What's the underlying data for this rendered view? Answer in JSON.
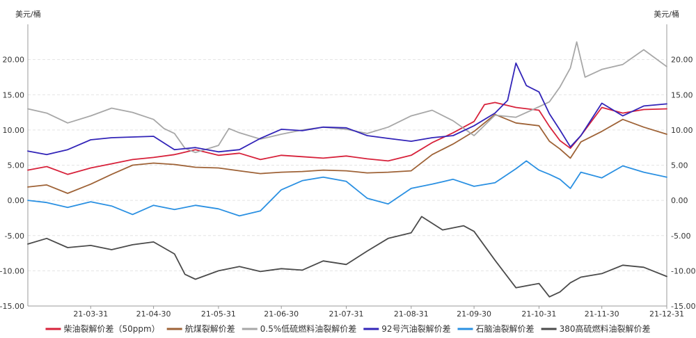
{
  "chart_data": {
    "type": "line",
    "y_unit_left": "美元/桶",
    "y_unit_right": "美元/桶",
    "ylim": [
      -15,
      25
    ],
    "yticks": [
      "-15.00",
      "-10.00",
      "-5.00",
      "0.00",
      "5.00",
      "10.00",
      "15.00",
      "20.00"
    ],
    "yticks_right": [
      "-15.00",
      "-10.00",
      "-5.00",
      "0.00",
      "5.00",
      "10.00",
      "15.00",
      "20.00"
    ],
    "xlim": [
      "2021-03-01",
      "2021-12-31"
    ],
    "xticks": [
      "21-03-31",
      "21-04-30",
      "21-05-31",
      "21-06-30",
      "21-07-31",
      "21-08-31",
      "21-09-30",
      "21-10-31",
      "21-11-30",
      "21-12-31"
    ],
    "grid": true,
    "legend_position": "bottom",
    "series": [
      {
        "name": "柴油裂解价差（50ppm）",
        "color": "#d7213a",
        "points": [
          [
            "2021-03-01",
            4.3
          ],
          [
            "2021-03-10",
            4.8
          ],
          [
            "2021-03-20",
            3.7
          ],
          [
            "2021-03-31",
            4.6
          ],
          [
            "2021-04-10",
            5.2
          ],
          [
            "2021-04-20",
            5.8
          ],
          [
            "2021-04-30",
            6.1
          ],
          [
            "2021-05-10",
            6.5
          ],
          [
            "2021-05-20",
            7.2
          ],
          [
            "2021-05-31",
            6.4
          ],
          [
            "2021-06-10",
            6.7
          ],
          [
            "2021-06-20",
            5.8
          ],
          [
            "2021-06-30",
            6.4
          ],
          [
            "2021-07-10",
            6.2
          ],
          [
            "2021-07-20",
            6.0
          ],
          [
            "2021-07-31",
            6.3
          ],
          [
            "2021-08-10",
            5.9
          ],
          [
            "2021-08-20",
            5.6
          ],
          [
            "2021-08-31",
            6.4
          ],
          [
            "2021-09-10",
            8.2
          ],
          [
            "2021-09-20",
            9.6
          ],
          [
            "2021-09-30",
            11.2
          ],
          [
            "2021-10-05",
            13.6
          ],
          [
            "2021-10-10",
            13.9
          ],
          [
            "2021-10-20",
            13.2
          ],
          [
            "2021-10-31",
            12.8
          ],
          [
            "2021-11-05",
            10.5
          ],
          [
            "2021-11-10",
            8.5
          ],
          [
            "2021-11-15",
            7.4
          ],
          [
            "2021-11-20",
            9.2
          ],
          [
            "2021-11-30",
            13.2
          ],
          [
            "2021-12-10",
            12.4
          ],
          [
            "2021-12-20",
            12.9
          ],
          [
            "2021-12-31",
            13.0
          ]
        ]
      },
      {
        "name": "航煤裂解价差",
        "color": "#9e6236",
        "points": [
          [
            "2021-03-01",
            1.9
          ],
          [
            "2021-03-10",
            2.2
          ],
          [
            "2021-03-20",
            1.0
          ],
          [
            "2021-03-31",
            2.3
          ],
          [
            "2021-04-10",
            3.7
          ],
          [
            "2021-04-20",
            5.0
          ],
          [
            "2021-04-30",
            5.3
          ],
          [
            "2021-05-10",
            5.1
          ],
          [
            "2021-05-20",
            4.7
          ],
          [
            "2021-05-31",
            4.6
          ],
          [
            "2021-06-10",
            4.2
          ],
          [
            "2021-06-20",
            3.8
          ],
          [
            "2021-06-30",
            4.0
          ],
          [
            "2021-07-10",
            4.1
          ],
          [
            "2021-07-20",
            4.3
          ],
          [
            "2021-07-31",
            4.2
          ],
          [
            "2021-08-10",
            3.9
          ],
          [
            "2021-08-20",
            4.0
          ],
          [
            "2021-08-31",
            4.2
          ],
          [
            "2021-09-10",
            6.5
          ],
          [
            "2021-09-20",
            8.0
          ],
          [
            "2021-09-30",
            9.8
          ],
          [
            "2021-10-10",
            12.2
          ],
          [
            "2021-10-20",
            11.0
          ],
          [
            "2021-10-31",
            10.6
          ],
          [
            "2021-11-05",
            8.4
          ],
          [
            "2021-11-10",
            7.3
          ],
          [
            "2021-11-15",
            6.0
          ],
          [
            "2021-11-20",
            8.3
          ],
          [
            "2021-11-30",
            9.8
          ],
          [
            "2021-12-10",
            11.5
          ],
          [
            "2021-12-20",
            10.4
          ],
          [
            "2021-12-31",
            9.4
          ]
        ]
      },
      {
        "name": "0.5%低硫燃料油裂解价差",
        "color": "#a7a7a7",
        "points": [
          [
            "2021-03-01",
            13.0
          ],
          [
            "2021-03-10",
            12.4
          ],
          [
            "2021-03-20",
            11.0
          ],
          [
            "2021-03-31",
            12.0
          ],
          [
            "2021-04-10",
            13.1
          ],
          [
            "2021-04-20",
            12.5
          ],
          [
            "2021-04-30",
            11.5
          ],
          [
            "2021-05-05",
            10.2
          ],
          [
            "2021-05-10",
            9.5
          ],
          [
            "2021-05-15",
            7.4
          ],
          [
            "2021-05-20",
            6.8
          ],
          [
            "2021-05-31",
            7.8
          ],
          [
            "2021-06-05",
            10.2
          ],
          [
            "2021-06-10",
            9.6
          ],
          [
            "2021-06-20",
            8.7
          ],
          [
            "2021-06-30",
            9.4
          ],
          [
            "2021-07-10",
            10.0
          ],
          [
            "2021-07-20",
            10.4
          ],
          [
            "2021-07-31",
            10.1
          ],
          [
            "2021-08-10",
            9.5
          ],
          [
            "2021-08-20",
            10.4
          ],
          [
            "2021-08-31",
            12.0
          ],
          [
            "2021-09-10",
            12.8
          ],
          [
            "2021-09-20",
            11.3
          ],
          [
            "2021-09-30",
            9.2
          ],
          [
            "2021-10-10",
            12.1
          ],
          [
            "2021-10-20",
            11.8
          ],
          [
            "2021-10-31",
            13.3
          ],
          [
            "2021-11-05",
            14.0
          ],
          [
            "2021-11-10",
            16.1
          ],
          [
            "2021-11-15",
            18.8
          ],
          [
            "2021-11-18",
            22.5
          ],
          [
            "2021-11-22",
            17.5
          ],
          [
            "2021-11-30",
            18.6
          ],
          [
            "2021-12-10",
            19.3
          ],
          [
            "2021-12-20",
            21.4
          ],
          [
            "2021-12-31",
            19.0
          ]
        ]
      },
      {
        "name": "92号汽油裂解价差",
        "color": "#3224b8",
        "points": [
          [
            "2021-03-01",
            7.0
          ],
          [
            "2021-03-10",
            6.5
          ],
          [
            "2021-03-20",
            7.2
          ],
          [
            "2021-03-31",
            8.6
          ],
          [
            "2021-04-10",
            8.9
          ],
          [
            "2021-04-20",
            9.0
          ],
          [
            "2021-04-30",
            9.1
          ],
          [
            "2021-05-10",
            7.2
          ],
          [
            "2021-05-20",
            7.5
          ],
          [
            "2021-05-31",
            6.9
          ],
          [
            "2021-06-10",
            7.2
          ],
          [
            "2021-06-20",
            8.8
          ],
          [
            "2021-06-30",
            10.1
          ],
          [
            "2021-07-10",
            9.9
          ],
          [
            "2021-07-20",
            10.4
          ],
          [
            "2021-07-31",
            10.3
          ],
          [
            "2021-08-10",
            9.2
          ],
          [
            "2021-08-20",
            8.8
          ],
          [
            "2021-08-31",
            8.4
          ],
          [
            "2021-09-10",
            8.9
          ],
          [
            "2021-09-20",
            9.2
          ],
          [
            "2021-09-30",
            10.6
          ],
          [
            "2021-10-10",
            12.4
          ],
          [
            "2021-10-16",
            14.2
          ],
          [
            "2021-10-20",
            19.5
          ],
          [
            "2021-10-25",
            16.3
          ],
          [
            "2021-10-31",
            15.4
          ],
          [
            "2021-11-05",
            12.3
          ],
          [
            "2021-11-10",
            10.0
          ],
          [
            "2021-11-15",
            7.6
          ],
          [
            "2021-11-20",
            9.2
          ],
          [
            "2021-11-30",
            13.8
          ],
          [
            "2021-12-10",
            12.0
          ],
          [
            "2021-12-20",
            13.4
          ],
          [
            "2021-12-31",
            13.7
          ]
        ]
      },
      {
        "name": "石脑油裂解价差",
        "color": "#2a90e2",
        "points": [
          [
            "2021-03-01",
            0.0
          ],
          [
            "2021-03-10",
            -0.3
          ],
          [
            "2021-03-20",
            -1.0
          ],
          [
            "2021-03-31",
            -0.2
          ],
          [
            "2021-04-10",
            -0.8
          ],
          [
            "2021-04-20",
            -2.0
          ],
          [
            "2021-04-30",
            -0.7
          ],
          [
            "2021-05-10",
            -1.3
          ],
          [
            "2021-05-20",
            -0.7
          ],
          [
            "2021-05-31",
            -1.2
          ],
          [
            "2021-06-10",
            -2.2
          ],
          [
            "2021-06-20",
            -1.5
          ],
          [
            "2021-06-30",
            1.5
          ],
          [
            "2021-07-10",
            2.8
          ],
          [
            "2021-07-20",
            3.3
          ],
          [
            "2021-07-31",
            2.7
          ],
          [
            "2021-08-10",
            0.3
          ],
          [
            "2021-08-20",
            -0.5
          ],
          [
            "2021-08-31",
            1.7
          ],
          [
            "2021-09-10",
            2.3
          ],
          [
            "2021-09-20",
            3.0
          ],
          [
            "2021-09-30",
            2.0
          ],
          [
            "2021-10-10",
            2.5
          ],
          [
            "2021-10-20",
            4.5
          ],
          [
            "2021-10-25",
            5.6
          ],
          [
            "2021-10-31",
            4.3
          ],
          [
            "2021-11-05",
            3.7
          ],
          [
            "2021-11-10",
            3.0
          ],
          [
            "2021-11-15",
            1.7
          ],
          [
            "2021-11-20",
            4.0
          ],
          [
            "2021-11-30",
            3.2
          ],
          [
            "2021-12-10",
            4.9
          ],
          [
            "2021-12-20",
            4.0
          ],
          [
            "2021-12-31",
            3.3
          ]
        ]
      },
      {
        "name": "380高硫燃料油裂解价差",
        "color": "#4a4a4a",
        "points": [
          [
            "2021-03-01",
            -6.2
          ],
          [
            "2021-03-10",
            -5.4
          ],
          [
            "2021-03-20",
            -6.7
          ],
          [
            "2021-03-31",
            -6.4
          ],
          [
            "2021-04-10",
            -7.0
          ],
          [
            "2021-04-20",
            -6.3
          ],
          [
            "2021-04-30",
            -5.9
          ],
          [
            "2021-05-10",
            -7.6
          ],
          [
            "2021-05-15",
            -10.5
          ],
          [
            "2021-05-20",
            -11.2
          ],
          [
            "2021-05-31",
            -10.0
          ],
          [
            "2021-06-10",
            -9.4
          ],
          [
            "2021-06-20",
            -10.1
          ],
          [
            "2021-06-30",
            -9.7
          ],
          [
            "2021-07-10",
            -9.9
          ],
          [
            "2021-07-20",
            -8.6
          ],
          [
            "2021-07-31",
            -9.1
          ],
          [
            "2021-08-10",
            -7.2
          ],
          [
            "2021-08-20",
            -5.4
          ],
          [
            "2021-08-31",
            -4.6
          ],
          [
            "2021-09-05",
            -2.3
          ],
          [
            "2021-09-15",
            -4.2
          ],
          [
            "2021-09-25",
            -3.6
          ],
          [
            "2021-09-30",
            -4.4
          ],
          [
            "2021-10-10",
            -8.5
          ],
          [
            "2021-10-20",
            -12.4
          ],
          [
            "2021-10-31",
            -11.8
          ],
          [
            "2021-11-05",
            -13.7
          ],
          [
            "2021-11-10",
            -13.0
          ],
          [
            "2021-11-15",
            -11.7
          ],
          [
            "2021-11-20",
            -10.9
          ],
          [
            "2021-11-30",
            -10.4
          ],
          [
            "2021-12-10",
            -9.2
          ],
          [
            "2021-12-20",
            -9.5
          ],
          [
            "2021-12-31",
            -10.8
          ]
        ]
      }
    ]
  }
}
